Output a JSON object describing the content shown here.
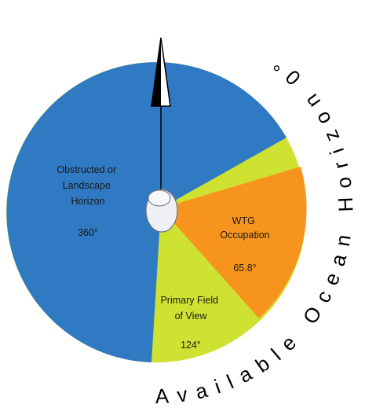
{
  "arc_label": "Available Ocean Horizon",
  "bearing_label": "0°",
  "segments": [
    {
      "title": [
        "Obstructed or",
        "Landscape",
        "Horizon"
      ],
      "angle": "360°"
    },
    {
      "title": [
        "WTG",
        "Occupation"
      ],
      "angle": "65.8°"
    },
    {
      "title": [
        "Primary Field",
        "of View"
      ],
      "angle": "124°"
    }
  ]
}
